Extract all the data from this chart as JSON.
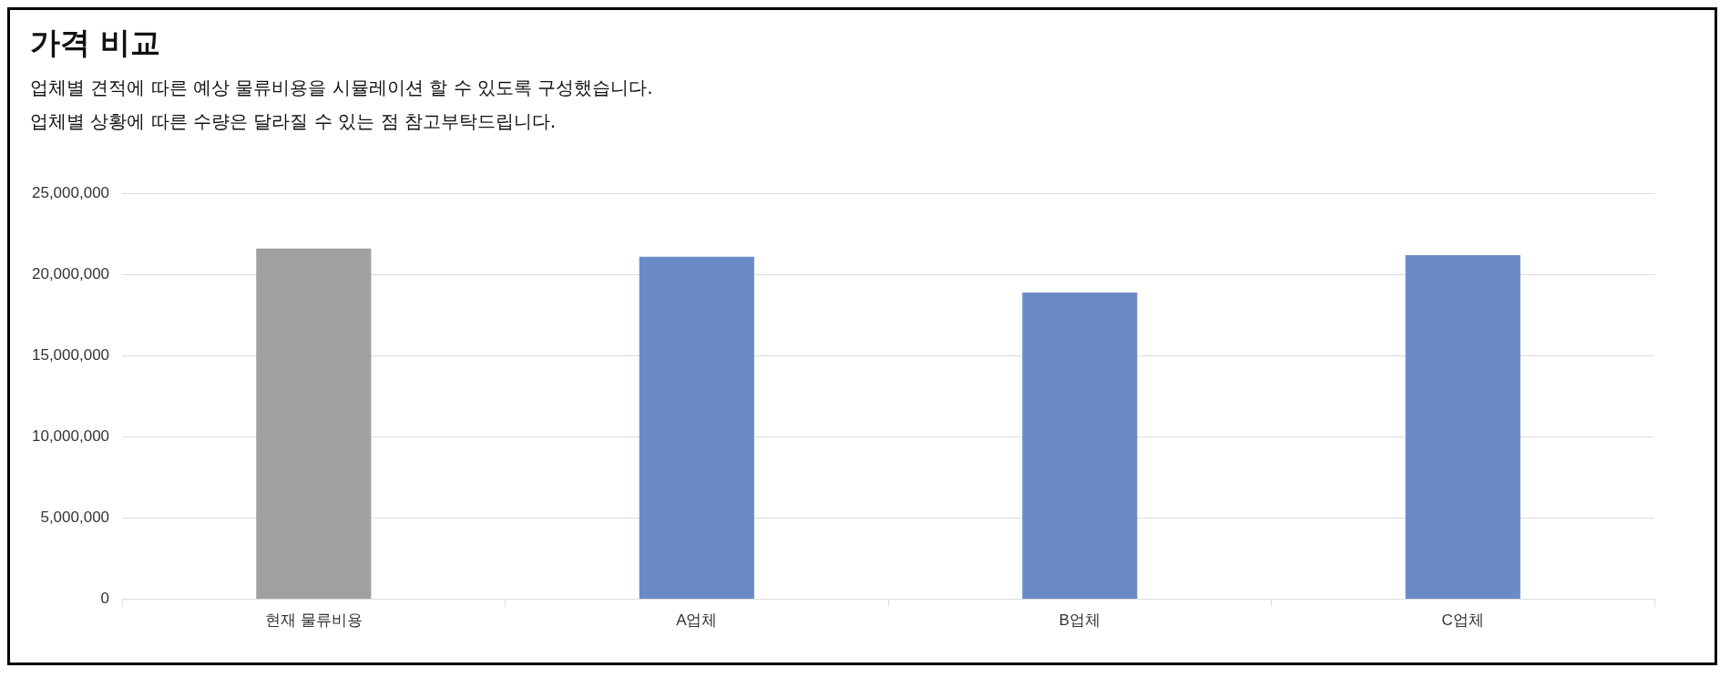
{
  "chart_data": {
    "type": "bar",
    "title": "가격 비교",
    "subtitle": "업체별 견적에 따른 예상 물류비용을 시뮬레이션 할 수 있도록 구성했습니다.\n업체별 상황에 따른 수량은 달라질 수 있는 점 참고부탁드립니다.",
    "categories": [
      "현재 물류비용",
      "A업체",
      "B업체",
      "C업체"
    ],
    "values": [
      21600000,
      21100000,
      18900000,
      21200000
    ],
    "colors": [
      "#a0a0a0",
      "#6a8bc8",
      "#6a8bc8",
      "#6a8bc8"
    ],
    "ylim": [
      0,
      25000000
    ],
    "yticks": [
      0,
      {
        "value": 5000000,
        "label": "5,000,000"
      },
      {
        "value": 10000000,
        "label": "10,000,000"
      },
      {
        "value": 15000000,
        "label": "15,000,000"
      },
      {
        "value": 20000000,
        "label": "20,000,000"
      },
      {
        "value": 25000000,
        "label": "25,000,000"
      }
    ],
    "grid": "y",
    "legend": false
  }
}
